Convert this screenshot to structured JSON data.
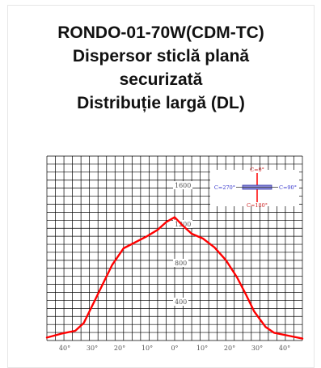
{
  "product": {
    "lines": [
      "RONDO-01-70W(CDM-TC)",
      "Dispersor sticlă plană",
      "securizată",
      "Distribuție largă (DL)"
    ]
  },
  "chart_data": {
    "type": "line",
    "title": "",
    "x_tick_labels": [
      "40°",
      "30°",
      "20°",
      "10°",
      "0°",
      "10°",
      "20°",
      "30°",
      "40°"
    ],
    "radial_labels": [
      "1600",
      "1200",
      "800",
      "400"
    ],
    "angle_range": [
      -45,
      45
    ],
    "intensity_range": [
      0,
      1900
    ],
    "grid": true,
    "legend": {
      "placement": "top-right",
      "labels": {
        "top": "C=0°",
        "left": "C=270°",
        "right": "C=90°",
        "bottom": "C=180°"
      }
    },
    "colors": {
      "curve": "#ff0000",
      "grid": "#000000",
      "text": "#555555",
      "legend_text": "#3333cc"
    },
    "series": [
      {
        "angles": [
          -45,
          -40,
          -35,
          -32,
          -28,
          -25,
          -22,
          -18,
          -14,
          -10,
          -6,
          -3,
          0,
          3,
          6,
          10,
          14,
          18,
          22,
          25,
          28,
          32,
          35,
          40,
          45
        ],
        "values": [
          30,
          70,
          100,
          180,
          420,
          600,
          780,
          950,
          1010,
          1070,
          1140,
          1220,
          1270,
          1180,
          1100,
          1050,
          960,
          830,
          650,
          480,
          300,
          140,
          80,
          50,
          20
        ]
      }
    ]
  }
}
